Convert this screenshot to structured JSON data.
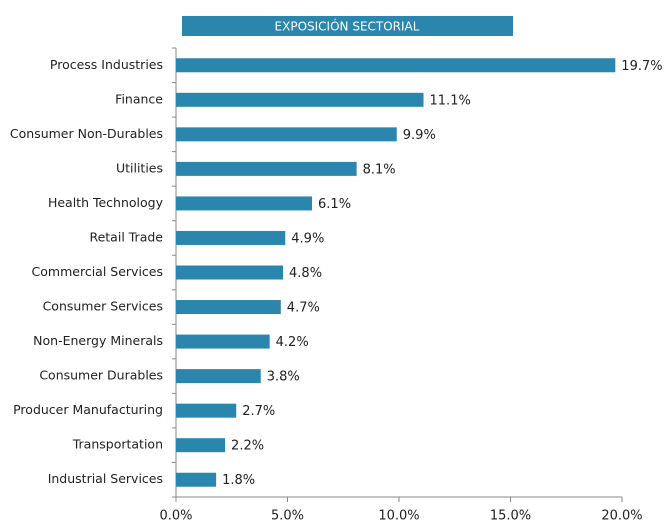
{
  "chart_data": {
    "type": "bar",
    "orientation": "horizontal",
    "title": "EXPOSICIÓN SECTORIAL",
    "categories": [
      "Process Industries",
      "Finance",
      "Consumer Non-Durables",
      "Utilities",
      "Health Technology",
      "Retail Trade",
      "Commercial Services",
      "Consumer Services",
      "Non-Energy Minerals",
      "Consumer Durables",
      "Producer Manufacturing",
      "Transportation",
      "Industrial Services"
    ],
    "values": [
      19.7,
      11.1,
      9.9,
      8.1,
      6.1,
      4.9,
      4.8,
      4.7,
      4.2,
      3.8,
      2.7,
      2.2,
      1.8
    ],
    "value_labels": [
      "19.7%",
      "11.1%",
      "9.9%",
      "8.1%",
      "6.1%",
      "4.9%",
      "4.8%",
      "4.7%",
      "4.2%",
      "3.8%",
      "2.7%",
      "2.2%",
      "1.8%"
    ],
    "color": "#2b86ad",
    "xlim": [
      0,
      20
    ],
    "xticks": [
      {
        "value": 0,
        "label": "0.0%"
      },
      {
        "value": 5,
        "label": "5.0%"
      },
      {
        "value": 10,
        "label": "10.0%"
      },
      {
        "value": 15,
        "label": "15.0%"
      },
      {
        "value": 20,
        "label": "20.0%"
      }
    ],
    "grid": false
  }
}
